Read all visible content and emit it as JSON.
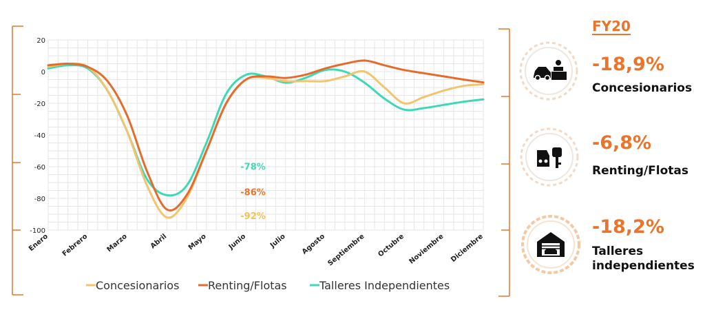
{
  "colors": {
    "concesionarios": "#F2C46D",
    "renting": "#E56B2B",
    "talleres": "#3DD9B7",
    "accent": "#E9742B",
    "grid": "#E6E6E6",
    "annot_concesionarios": "#F5C152",
    "annot_renting": "#E9742B",
    "annot_talleres": "#3DD9B7"
  },
  "chart_data": {
    "type": "line",
    "categories": [
      "Enero",
      "Febrero",
      "Marzo",
      "Abril",
      "Mayo",
      "Junio",
      "Julio",
      "Agosto",
      "Septiembre",
      "Octubre",
      "Noviembre",
      "Diciembre"
    ],
    "x": [
      0,
      0.5,
      1,
      1.5,
      2,
      2.5,
      3,
      3.5,
      4,
      4.5,
      5,
      5.5,
      6,
      6.5,
      7,
      7.5,
      8,
      8.5,
      9,
      9.5,
      10,
      10.5,
      11
    ],
    "ylim": [
      -100,
      20
    ],
    "yticks": [
      20,
      0,
      -20,
      -40,
      -60,
      -80,
      -100
    ],
    "grid": true,
    "legend_position": "bottom",
    "series": [
      {
        "name": "Concesionarios",
        "color_key": "concesionarios",
        "values": [
          3,
          5,
          3,
          -12,
          -38,
          -72,
          -92,
          -80,
          -50,
          -20,
          -5,
          -4,
          -6,
          -6,
          -6,
          -3,
          0,
          -10,
          -20,
          -16,
          -12,
          -9,
          -8
        ]
      },
      {
        "name": "Renting/Flotas",
        "color_key": "renting",
        "values": [
          4,
          5,
          3,
          -6,
          -28,
          -63,
          -87,
          -78,
          -50,
          -20,
          -5,
          -3,
          -4,
          -2,
          2,
          5,
          7,
          4,
          1,
          -1,
          -3,
          -5,
          -6.8
        ]
      },
      {
        "name": "Talleres Independientes",
        "color_key": "talleres",
        "values": [
          2,
          4,
          2,
          -12,
          -38,
          -68,
          -78,
          -72,
          -45,
          -14,
          -2,
          -3,
          -7,
          -4,
          1,
          0,
          -7,
          -17,
          -24,
          -23,
          -21,
          -19,
          -17.5
        ]
      }
    ],
    "annotations": [
      {
        "text": "-78%",
        "x": 5,
        "y": -62,
        "color_key": "annot_talleres"
      },
      {
        "text": "-86%",
        "x": 5,
        "y": -78,
        "color_key": "annot_renting"
      },
      {
        "text": "-92%",
        "x": 5,
        "y": -93,
        "color_key": "annot_concesionarios"
      }
    ]
  },
  "summary": {
    "title": "FY20",
    "items": [
      {
        "value": "-18,9%",
        "label_lines": [
          "Concesionarios"
        ],
        "icon": "dealer-icon"
      },
      {
        "value": "-6,8%",
        "label_lines": [
          "Renting/Flotas"
        ],
        "icon": "car-key-icon"
      },
      {
        "value": "-18,2%",
        "label_lines": [
          "Talleres",
          "independientes"
        ],
        "icon": "garage-icon"
      }
    ]
  }
}
